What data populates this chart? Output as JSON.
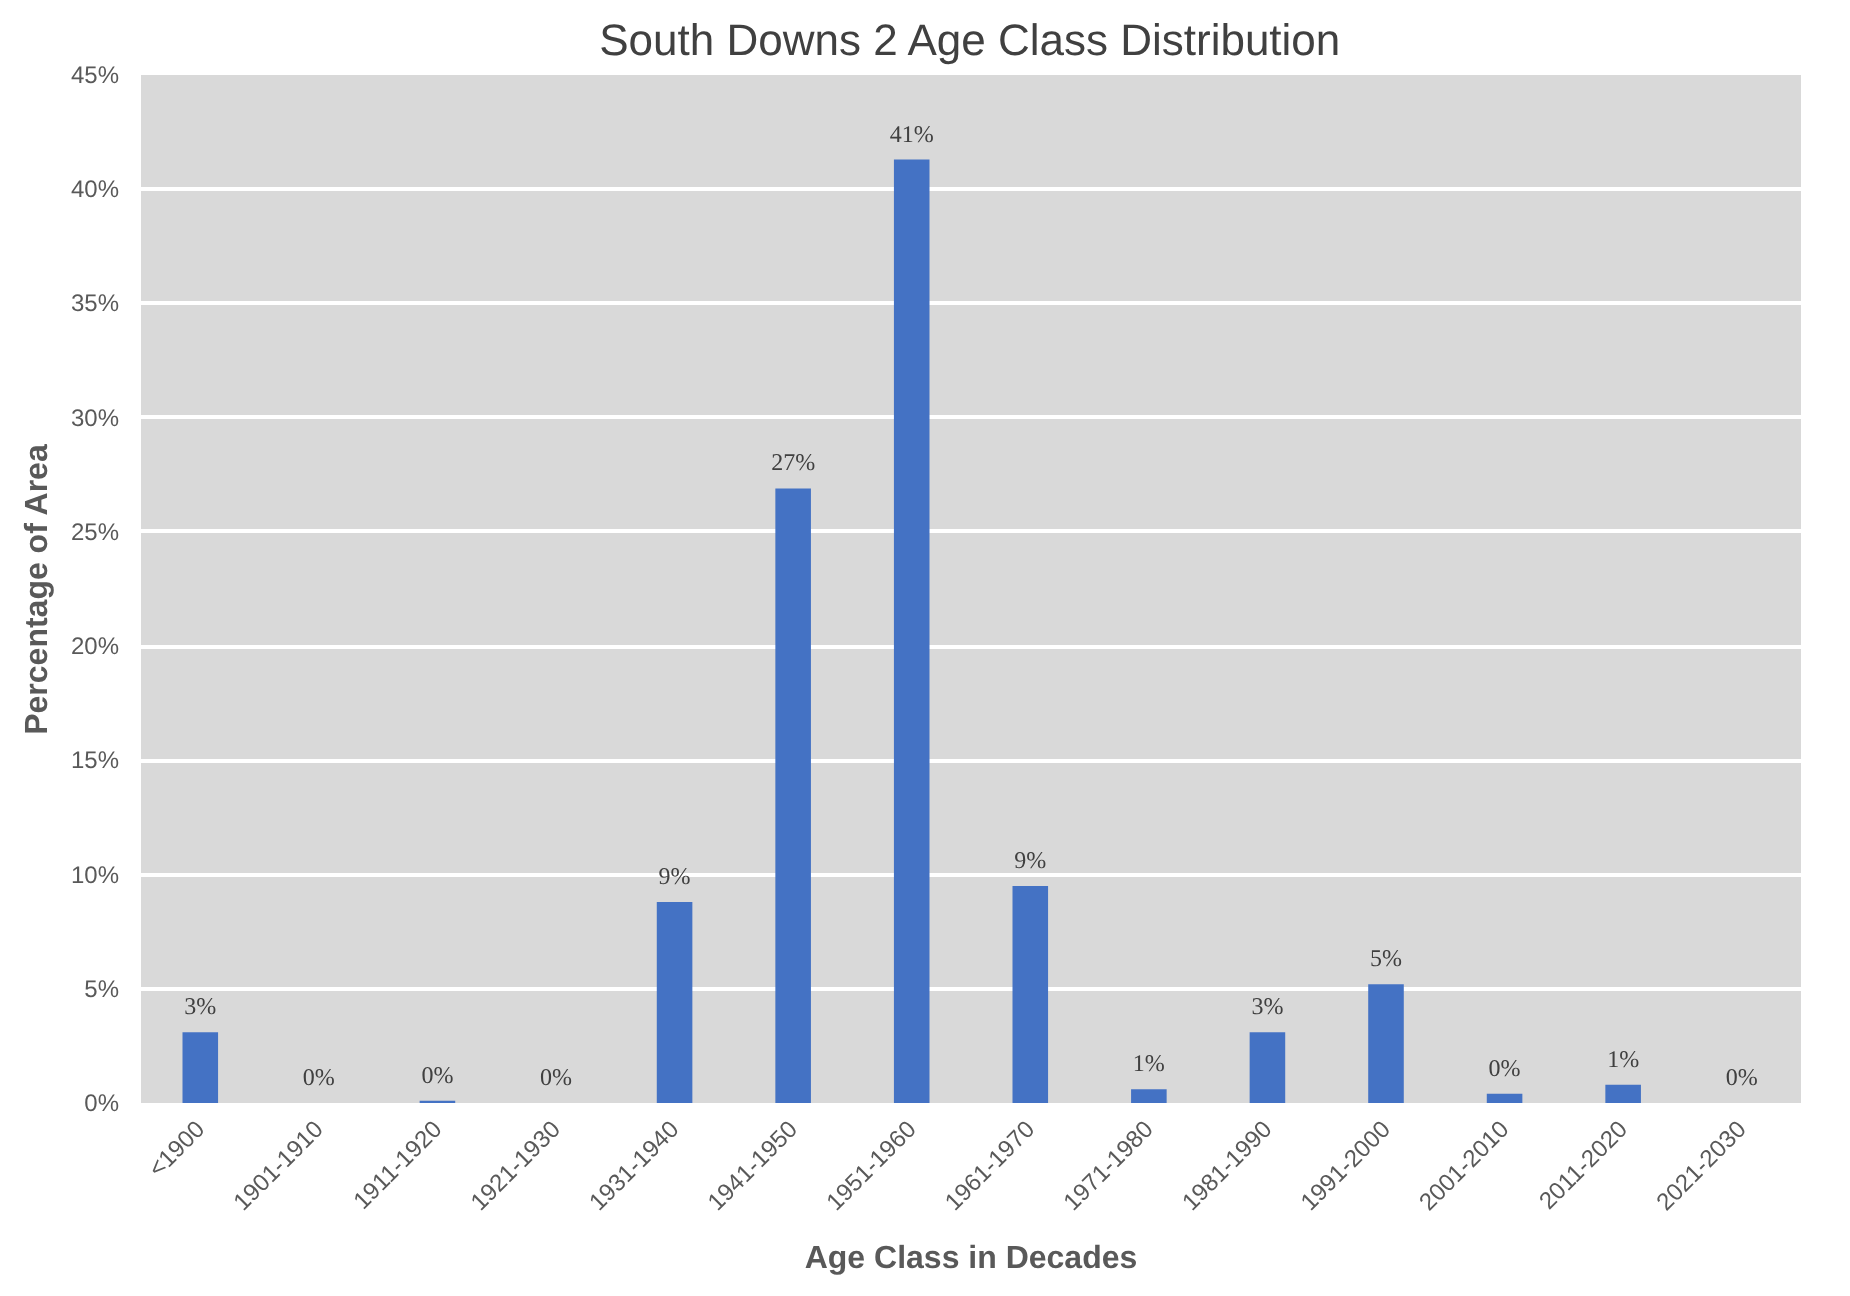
{
  "chart_data": {
    "type": "bar",
    "title": "South Downs 2 Age Class Distribution",
    "xlabel": "Age Class in Decades",
    "ylabel": "Percentage of Area",
    "categories": [
      "<1900",
      "1901-1910",
      "1911-1920",
      "1921-1930",
      "1931-1940",
      "1941-1950",
      "1951-1960",
      "1961-1970",
      "1971-1980",
      "1981-1990",
      "1991-2000",
      "2001-2010",
      "2011-2020",
      "2021-2030"
    ],
    "values": [
      3.1,
      0,
      0.1,
      0,
      8.8,
      26.9,
      41.3,
      9.5,
      0.6,
      3.1,
      5.2,
      0.4,
      0.8,
      0
    ],
    "value_labels": [
      "3%",
      "0%",
      "0%",
      "0%",
      "9%",
      "27%",
      "41%",
      "9%",
      "1%",
      "3%",
      "5%",
      "0%",
      "1%",
      "0%"
    ],
    "color": "#4472c4",
    "ylim": [
      0,
      45
    ],
    "yticks": [
      {
        "value": 0,
        "label": "0%"
      },
      {
        "value": 5,
        "label": "5%"
      },
      {
        "value": 10,
        "label": "10%"
      },
      {
        "value": 15,
        "label": "15%"
      },
      {
        "value": 20,
        "label": "20%"
      },
      {
        "value": 25,
        "label": "25%"
      },
      {
        "value": 30,
        "label": "30%"
      },
      {
        "value": 35,
        "label": "35%"
      },
      {
        "value": 40,
        "label": "40%"
      },
      {
        "value": 45,
        "label": "45%"
      }
    ],
    "grid": "y"
  }
}
